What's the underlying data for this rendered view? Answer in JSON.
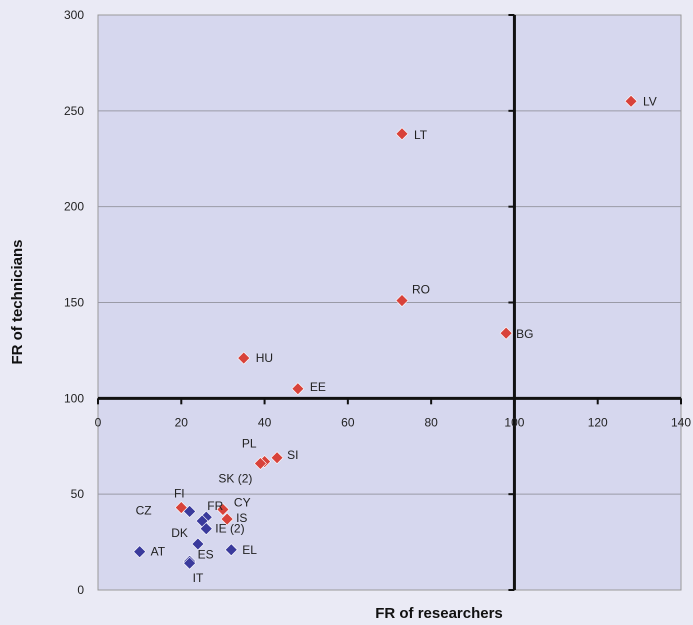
{
  "chart_data": {
    "type": "scatter",
    "xlabel": "FR of researchers",
    "ylabel": "FR of technicians",
    "xlim": [
      0,
      140
    ],
    "ylim": [
      0,
      300
    ],
    "x_ticks": [
      "0",
      "20",
      "40",
      "60",
      "80",
      "100",
      "120",
      "140"
    ],
    "y_ticks": [
      "0",
      "50",
      "100",
      "150",
      "200",
      "250",
      "300"
    ],
    "crosshair": {
      "x": 100,
      "y": 100
    },
    "grid": "horizontal",
    "colors": {
      "red": "#d8423a",
      "blue": "#3a3a9c",
      "plot_bg": "#d6d7ee"
    },
    "points": [
      {
        "label": "LV",
        "x": 128,
        "y": 255,
        "color": "red"
      },
      {
        "label": "LT",
        "x": 73,
        "y": 238,
        "color": "red"
      },
      {
        "label": "RO",
        "x": 73,
        "y": 151,
        "color": "red"
      },
      {
        "label": "BG",
        "x": 98,
        "y": 134,
        "color": "red"
      },
      {
        "label": "HU",
        "x": 35,
        "y": 121,
        "color": "red"
      },
      {
        "label": "EE",
        "x": 48,
        "y": 105,
        "color": "red"
      },
      {
        "label": "SI",
        "x": 43,
        "y": 69,
        "color": "red"
      },
      {
        "label": "PL",
        "x": 40,
        "y": 67,
        "color": "red"
      },
      {
        "label": "SK (2)",
        "x": 39,
        "y": 66,
        "color": "red"
      },
      {
        "label": "FI",
        "x": 20,
        "y": 43,
        "color": "red"
      },
      {
        "label": "CY",
        "x": 30,
        "y": 42,
        "color": "red"
      },
      {
        "label": "IS",
        "x": 31,
        "y": 37,
        "color": "red"
      },
      {
        "label": "CZ",
        "x": 22,
        "y": 41,
        "color": "blue"
      },
      {
        "label": "FR",
        "x": 26,
        "y": 38,
        "color": "blue"
      },
      {
        "label": "",
        "x": 25,
        "y": 36,
        "color": "blue"
      },
      {
        "label": "IE (2)",
        "x": 26,
        "y": 32,
        "color": "blue"
      },
      {
        "label": "DK",
        "x": 24,
        "y": 24,
        "color": "blue"
      },
      {
        "label": "EL",
        "x": 32,
        "y": 21,
        "color": "blue"
      },
      {
        "label": "AT",
        "x": 10,
        "y": 20,
        "color": "blue"
      },
      {
        "label": "ES",
        "x": 22,
        "y": 15,
        "color": "blue"
      },
      {
        "label": "IT",
        "x": 22,
        "y": 14,
        "color": "blue"
      }
    ]
  }
}
